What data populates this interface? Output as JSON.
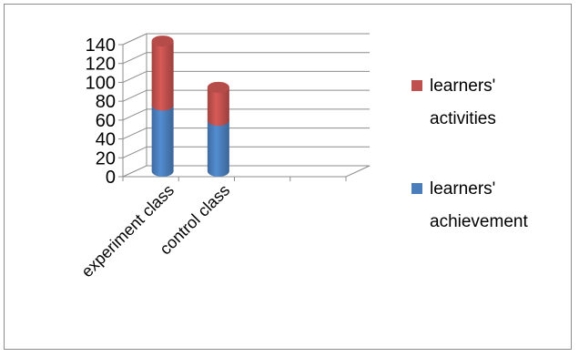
{
  "chart_data": {
    "type": "bar",
    "stacked": true,
    "style_3d": true,
    "categories": [
      "experiment class",
      "control class"
    ],
    "series": [
      {
        "name": "learners' achievement",
        "values": [
          70,
          54
        ],
        "color": "#4a7ebb"
      },
      {
        "name": "learners' activities",
        "values": [
          68,
          35
        ],
        "color": "#c0504d"
      }
    ],
    "y_ticks": [
      "0",
      "20",
      "40",
      "60",
      "80",
      "100",
      "120",
      "140"
    ],
    "ylim": [
      0,
      140
    ],
    "title": "",
    "xlabel": "",
    "ylabel": "",
    "grid": true,
    "legend_position": "right",
    "legend": [
      {
        "line1": "learners'",
        "line2": "activities",
        "color": "#c0504d"
      },
      {
        "line1": "learners'",
        "line2": "achievement",
        "color": "#4a7ebb"
      }
    ]
  }
}
